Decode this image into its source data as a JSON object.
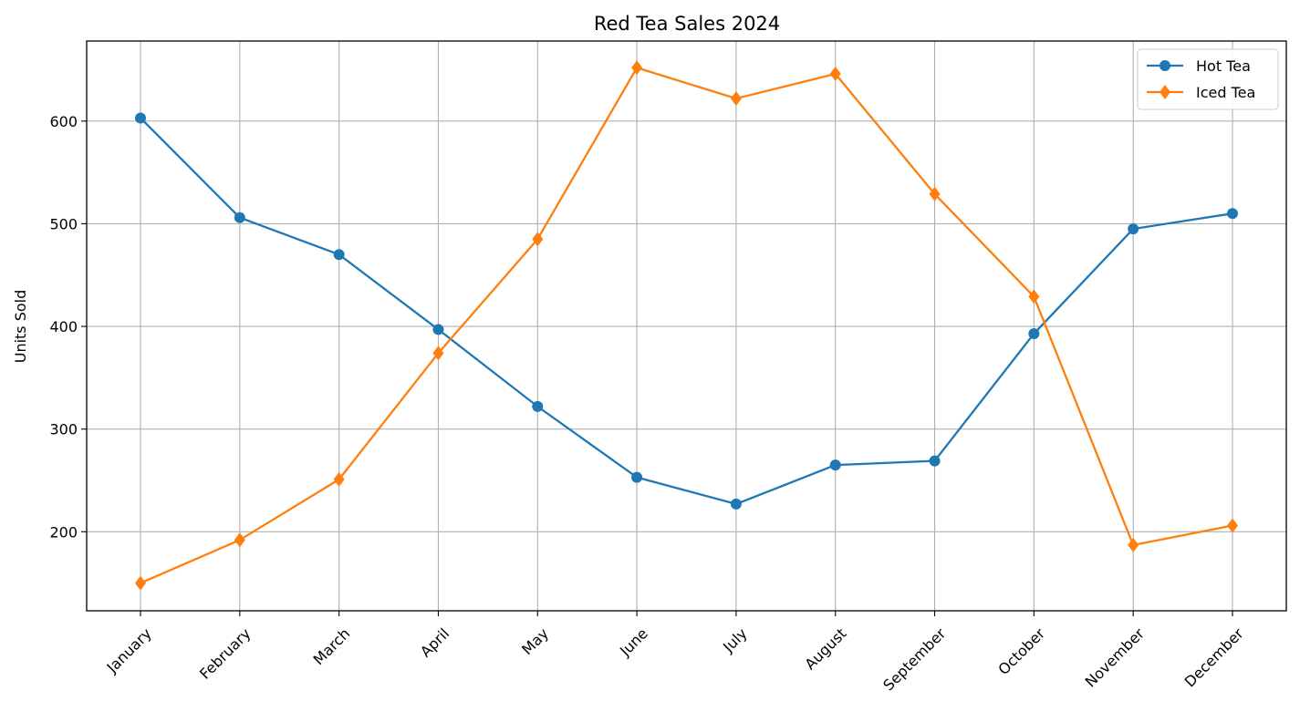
{
  "chart_data": {
    "type": "line",
    "title": "Red Tea Sales 2024",
    "xlabel": "",
    "ylabel": "Units Sold",
    "categories": [
      "January",
      "February",
      "March",
      "April",
      "May",
      "June",
      "July",
      "August",
      "September",
      "October",
      "November",
      "December"
    ],
    "series": [
      {
        "name": "Hot Tea",
        "color": "#1f77b4",
        "marker": "circle",
        "values": [
          603,
          506,
          470,
          397,
          322,
          253,
          227,
          265,
          269,
          393,
          495,
          510
        ]
      },
      {
        "name": "Iced Tea",
        "color": "#ff7f0e",
        "marker": "diamond",
        "values": [
          150,
          192,
          251,
          374,
          485,
          652,
          622,
          646,
          529,
          429,
          187,
          206
        ]
      }
    ],
    "ylim": [
      123,
      678
    ],
    "yticks": [
      200,
      300,
      400,
      500,
      600
    ],
    "grid": true,
    "legend": "top-right"
  }
}
